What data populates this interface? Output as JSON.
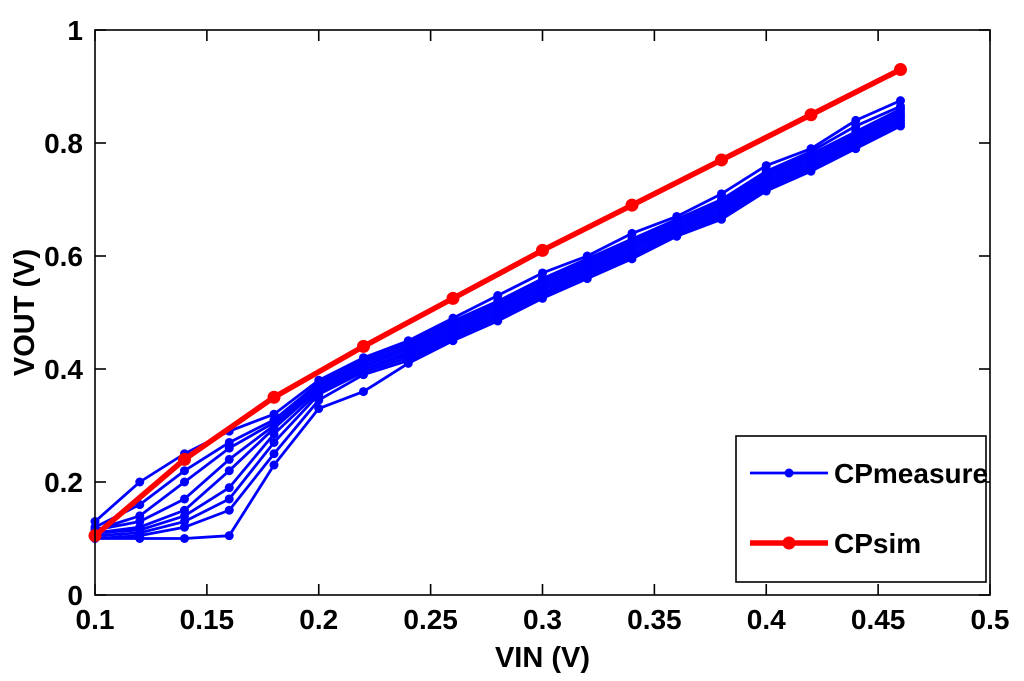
{
  "figure": {
    "background": "#ffffff",
    "axis_color": "#000000"
  },
  "legend": {
    "position": "lower right",
    "entries": [
      {
        "label": "CPmeasure",
        "color": "#0000FF"
      },
      {
        "label": "CPsim",
        "color": "#FF0000"
      }
    ]
  },
  "chart_data": {
    "type": "line",
    "title": "",
    "xlabel": "VIN (V)",
    "ylabel": "VOUT (V)",
    "xlim": [
      0.1,
      0.5
    ],
    "ylim": [
      0,
      1
    ],
    "xticks": [
      0.1,
      0.15,
      0.2,
      0.25,
      0.3,
      0.35,
      0.4,
      0.45,
      0.5
    ],
    "xtick_labels": [
      "0.1",
      "0.15",
      "0.2",
      "0.25",
      "0.3",
      "0.35",
      "0.4",
      "0.45",
      "0.5"
    ],
    "yticks": [
      0,
      0.2,
      0.4,
      0.6,
      0.8,
      1
    ],
    "ytick_labels": [
      "0",
      "0.2",
      "0.4",
      "0.6",
      "0.8",
      "1"
    ],
    "grid": false,
    "legend_position": "lower right",
    "sim": {
      "name": "CPsim",
      "color": "#FF0000",
      "line_width": 5.5,
      "marker_radius": 6.5,
      "x": [
        0.1,
        0.14,
        0.18,
        0.22,
        0.26,
        0.3,
        0.34,
        0.38,
        0.42,
        0.46
      ],
      "y": [
        0.105,
        0.24,
        0.35,
        0.44,
        0.525,
        0.61,
        0.69,
        0.77,
        0.85,
        0.93
      ]
    },
    "measure": {
      "name": "CPmeasure",
      "color": "#0000FF",
      "line_width": 2.8,
      "marker_radius": 4.5,
      "x": [
        0.1,
        0.12,
        0.14,
        0.16,
        0.18,
        0.2,
        0.22,
        0.24,
        0.26,
        0.28,
        0.3,
        0.32,
        0.34,
        0.36,
        0.38,
        0.4,
        0.42,
        0.44,
        0.46
      ],
      "runs": [
        [
          0.13,
          0.2,
          0.25,
          0.29,
          0.32,
          0.38,
          0.42,
          0.45,
          0.49,
          0.53,
          0.57,
          0.6,
          0.64,
          0.67,
          0.71,
          0.76,
          0.79,
          0.84,
          0.875
        ],
        [
          0.12,
          0.16,
          0.22,
          0.27,
          0.31,
          0.375,
          0.415,
          0.445,
          0.485,
          0.52,
          0.56,
          0.595,
          0.63,
          0.665,
          0.7,
          0.75,
          0.785,
          0.83,
          0.865
        ],
        [
          0.115,
          0.14,
          0.2,
          0.26,
          0.305,
          0.37,
          0.41,
          0.44,
          0.48,
          0.515,
          0.555,
          0.59,
          0.625,
          0.66,
          0.695,
          0.745,
          0.78,
          0.82,
          0.86
        ],
        [
          0.115,
          0.13,
          0.17,
          0.24,
          0.3,
          0.37,
          0.405,
          0.435,
          0.475,
          0.51,
          0.55,
          0.585,
          0.62,
          0.655,
          0.69,
          0.74,
          0.775,
          0.815,
          0.855
        ],
        [
          0.11,
          0.12,
          0.15,
          0.22,
          0.295,
          0.365,
          0.4,
          0.43,
          0.47,
          0.505,
          0.545,
          0.58,
          0.615,
          0.65,
          0.685,
          0.735,
          0.77,
          0.81,
          0.85
        ],
        [
          0.11,
          0.115,
          0.14,
          0.19,
          0.285,
          0.36,
          0.4,
          0.425,
          0.465,
          0.5,
          0.54,
          0.575,
          0.61,
          0.645,
          0.68,
          0.73,
          0.765,
          0.805,
          0.845
        ],
        [
          0.105,
          0.11,
          0.13,
          0.17,
          0.27,
          0.355,
          0.395,
          0.42,
          0.46,
          0.495,
          0.535,
          0.57,
          0.605,
          0.64,
          0.675,
          0.725,
          0.76,
          0.8,
          0.84
        ],
        [
          0.1,
          0.105,
          0.12,
          0.15,
          0.25,
          0.345,
          0.39,
          0.415,
          0.455,
          0.49,
          0.53,
          0.565,
          0.6,
          0.635,
          0.67,
          0.72,
          0.755,
          0.795,
          0.835
        ],
        [
          0.1,
          0.1,
          0.1,
          0.105,
          0.23,
          0.33,
          0.36,
          0.41,
          0.45,
          0.485,
          0.525,
          0.56,
          0.595,
          0.635,
          0.665,
          0.715,
          0.75,
          0.79,
          0.83
        ]
      ]
    }
  }
}
